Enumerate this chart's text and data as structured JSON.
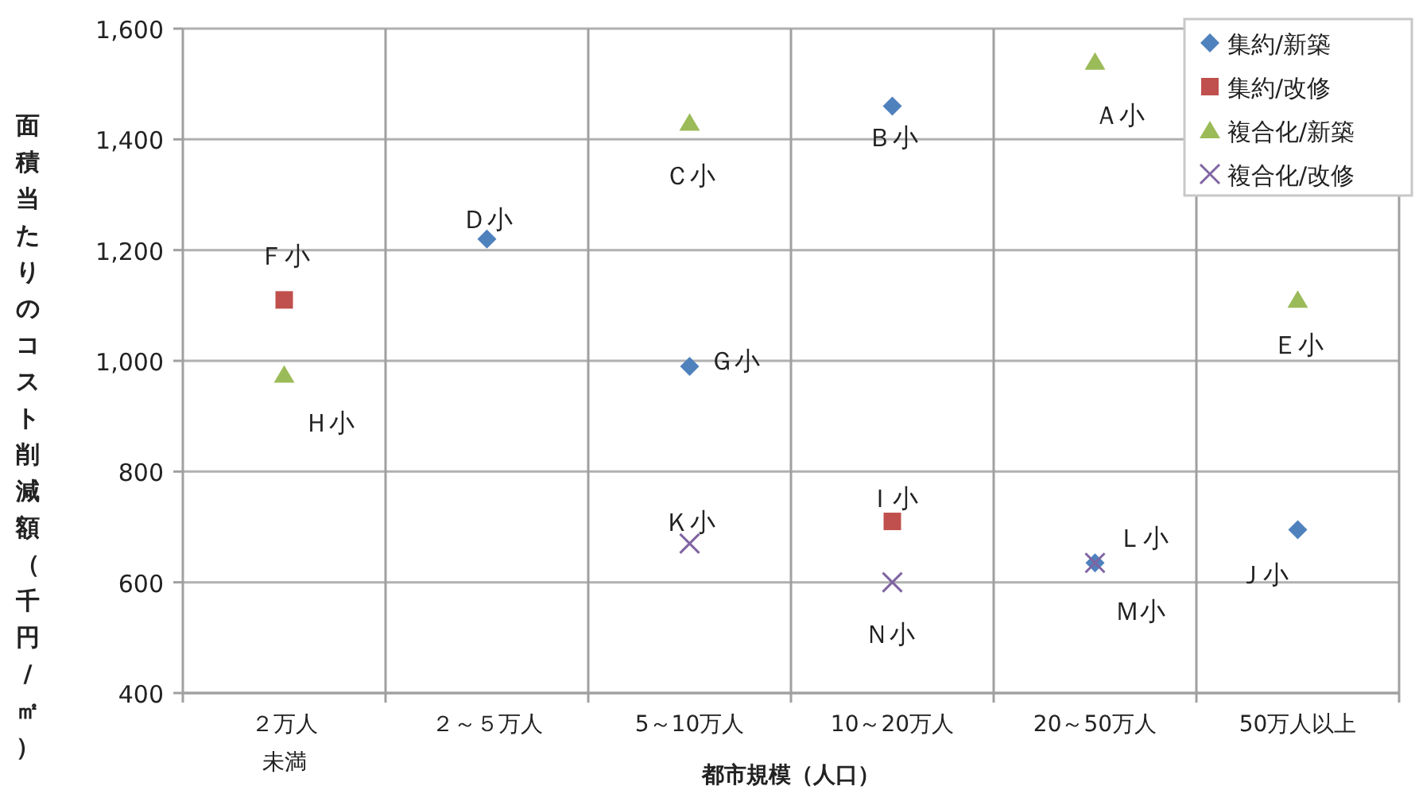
{
  "chart_data": {
    "type": "scatter",
    "xlabel": "都市規模（人口）",
    "ylabel": "面積当たりのコスト削減額（千円/㎡）",
    "categories": [
      "２万人未満",
      "２～５万人",
      "5～10万人",
      "10～20万人",
      "20～50万人",
      "50万人以上"
    ],
    "ylim": [
      400,
      1600
    ],
    "yticks": [
      {
        "value": 400,
        "label": "400"
      },
      {
        "value": 600,
        "label": "600"
      },
      {
        "value": 800,
        "label": "800"
      },
      {
        "value": 1000,
        "label": "1,000"
      },
      {
        "value": 1200,
        "label": "1,200"
      },
      {
        "value": 1400,
        "label": "1,400"
      },
      {
        "value": 1600,
        "label": "1,600"
      }
    ],
    "grid": true,
    "legend": "top right",
    "series": [
      {
        "name": "集約/新築",
        "color": "#4f81bd",
        "marker": "diamond",
        "values": [
          null,
          1220,
          990,
          1460,
          635,
          695
        ]
      },
      {
        "name": "集約/改修",
        "color": "#c0504d",
        "marker": "square",
        "values": [
          1110,
          null,
          null,
          710,
          null,
          null
        ]
      },
      {
        "name": "複合化/新築",
        "color": "#9bbb59",
        "marker": "triangle",
        "values": [
          975,
          null,
          1430,
          null,
          1540,
          1110
        ]
      },
      {
        "name": "複合化/改修",
        "color": "#8064a2",
        "marker": "cross",
        "values": [
          null,
          null,
          670,
          600,
          635,
          null
        ]
      }
    ],
    "annotations": [
      {
        "text": "Ａ小",
        "x": "20～50万人",
        "y": 1540
      },
      {
        "text": "Ｂ小",
        "x": "10～20万人",
        "y": 1460
      },
      {
        "text": "Ｃ小",
        "x": "5～10万人",
        "y": 1430
      },
      {
        "text": "Ｄ小",
        "x": "２～５万人",
        "y": 1220
      },
      {
        "text": "Ｅ小",
        "x": "50万人以上",
        "y": 1110
      },
      {
        "text": "Ｆ小",
        "x": "２万人未満",
        "y": 1110
      },
      {
        "text": "Ｇ小",
        "x": "5～10万人",
        "y": 990
      },
      {
        "text": "Ｈ小",
        "x": "２万人未満",
        "y": 975
      },
      {
        "text": "Ｉ小",
        "x": "10～20万人",
        "y": 710
      },
      {
        "text": "Ｊ小",
        "x": "50万人以上",
        "y": 695
      },
      {
        "text": "Ｋ小",
        "x": "5～10万人",
        "y": 670
      },
      {
        "text": "Ｌ小",
        "x": "20～50万人",
        "y": 635
      },
      {
        "text": "Ｍ小",
        "x": "20～50万人",
        "y": 635
      },
      {
        "text": "Ｎ小",
        "x": "10～20万人",
        "y": 600
      }
    ]
  }
}
